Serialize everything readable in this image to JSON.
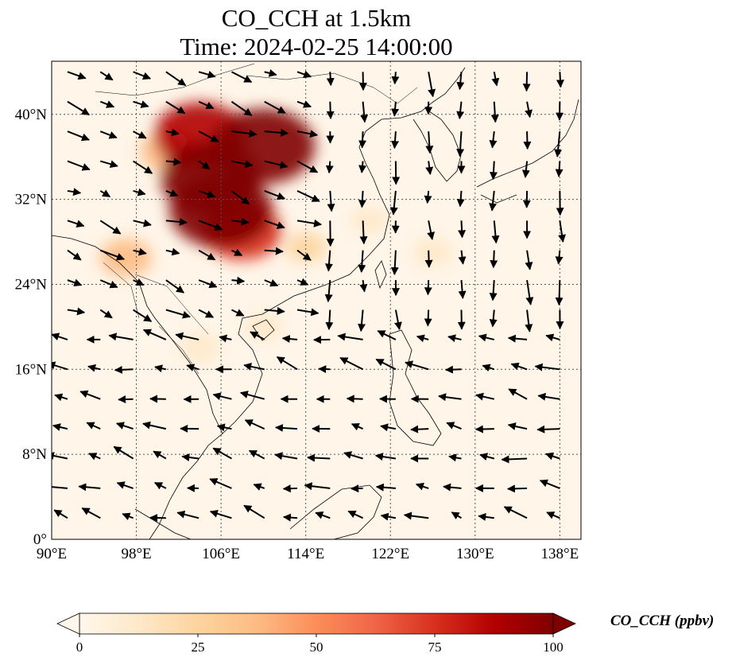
{
  "title": {
    "line1": "CO_CCH at 1.5km",
    "line2": "Time: 2024-02-25 14:00:00"
  },
  "map": {
    "extent": {
      "lon_min": 90,
      "lon_max": 140,
      "lat_min": 0,
      "lat_max": 45
    },
    "lon_ticks": [
      {
        "value": 90,
        "label": "90°E"
      },
      {
        "value": 98,
        "label": "98°E"
      },
      {
        "value": 106,
        "label": "106°E"
      },
      {
        "value": 114,
        "label": "114°E"
      },
      {
        "value": 122,
        "label": "122°E"
      },
      {
        "value": 130,
        "label": "130°E"
      },
      {
        "value": 138,
        "label": "138°E"
      }
    ],
    "lat_ticks": [
      {
        "value": 0,
        "label": "0°"
      },
      {
        "value": 8,
        "label": "8°N"
      },
      {
        "value": 16,
        "label": "16°N"
      },
      {
        "value": 24,
        "label": "24°N"
      },
      {
        "value": 32,
        "label": "32°N"
      },
      {
        "value": 40,
        "label": "40°N"
      }
    ],
    "gridlines": true,
    "field_plumes": [
      {
        "lon": 106.0,
        "lat": 31.0,
        "value": 100
      },
      {
        "lon": 105.0,
        "lat": 34.0,
        "value": 95
      },
      {
        "lon": 110.0,
        "lat": 37.0,
        "value": 100
      },
      {
        "lon": 104.0,
        "lat": 38.0,
        "value": 85
      },
      {
        "lon": 108.0,
        "lat": 29.0,
        "value": 70
      },
      {
        "lon": 101.0,
        "lat": 36.5,
        "value": 40
      },
      {
        "lon": 97.0,
        "lat": 26.5,
        "value": 35
      },
      {
        "lon": 110.0,
        "lat": 20.0,
        "value": 15
      },
      {
        "lon": 126.0,
        "lat": 27.0,
        "value": 18
      },
      {
        "lon": 114.0,
        "lat": 27.5,
        "value": 20
      },
      {
        "lon": 120.0,
        "lat": 30.0,
        "value": 15
      },
      {
        "lon": 104.0,
        "lat": 18.0,
        "value": 18
      }
    ],
    "wind_regimes": [
      {
        "region": "north-west",
        "u": 1.0,
        "v": -0.35
      },
      {
        "region": "east-china",
        "u": 0.0,
        "v": -1.0
      },
      {
        "region": "south",
        "u": -1.0,
        "v": 0.25
      }
    ]
  },
  "colorbar": {
    "label": "CO_CCH (ppbv)",
    "vmin": 0,
    "vmax": 100,
    "ticks": [
      {
        "value": 0,
        "label": "0"
      },
      {
        "value": 25,
        "label": "25"
      },
      {
        "value": 50,
        "label": "50"
      },
      {
        "value": 75,
        "label": "75"
      },
      {
        "value": 100,
        "label": "100"
      }
    ],
    "extend": "both",
    "colormap": "OrRd",
    "colors": [
      "#fff7ec",
      "#fee8c8",
      "#fdd49e",
      "#fdbb84",
      "#fc8d59",
      "#ef6548",
      "#d7301f",
      "#b30000",
      "#7f0000"
    ]
  }
}
